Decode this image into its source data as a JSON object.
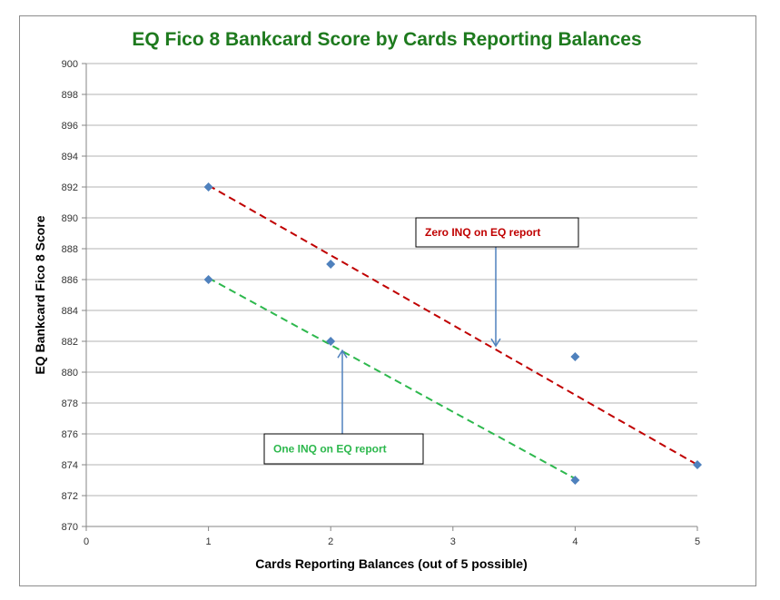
{
  "chart_data": {
    "type": "scatter",
    "title": "EQ Fico 8 Bankcard Score by Cards Reporting Balances",
    "xlabel": "Cards Reporting Balances (out of 5 possible)",
    "ylabel": "EQ Bankcard Fico 8 Score",
    "xlim": [
      0,
      5
    ],
    "ylim": [
      870,
      900
    ],
    "xticks": [
      0,
      1,
      2,
      3,
      4,
      5
    ],
    "yticks": [
      870,
      872,
      874,
      876,
      878,
      880,
      882,
      884,
      886,
      888,
      890,
      892,
      894,
      896,
      898,
      900
    ],
    "grid": "horizontal",
    "marker_color": "#4f81bd",
    "series": [
      {
        "name": "Zero INQ on EQ report",
        "x": [
          1,
          2,
          4,
          5
        ],
        "y": [
          892,
          887,
          881,
          874
        ],
        "trendline": {
          "x": [
            1,
            5
          ],
          "y": [
            892.1,
            874.0
          ],
          "color": "#c00000",
          "style": "dashed"
        }
      },
      {
        "name": "One INQ on EQ report",
        "x": [
          1,
          2,
          4
        ],
        "y": [
          886,
          882,
          873
        ],
        "trendline": {
          "x": [
            1,
            4
          ],
          "y": [
            886.1,
            873.1
          ],
          "color": "#2db84d",
          "style": "dashed"
        }
      }
    ],
    "annotations": [
      {
        "text": "Zero INQ on EQ report",
        "color": "#c00000",
        "points_to": {
          "x": 3.35,
          "y": 881.7
        }
      },
      {
        "text": "One INQ on EQ report",
        "color": "#2db84d",
        "points_to": {
          "x": 2.1,
          "y": 881.4
        }
      }
    ]
  }
}
